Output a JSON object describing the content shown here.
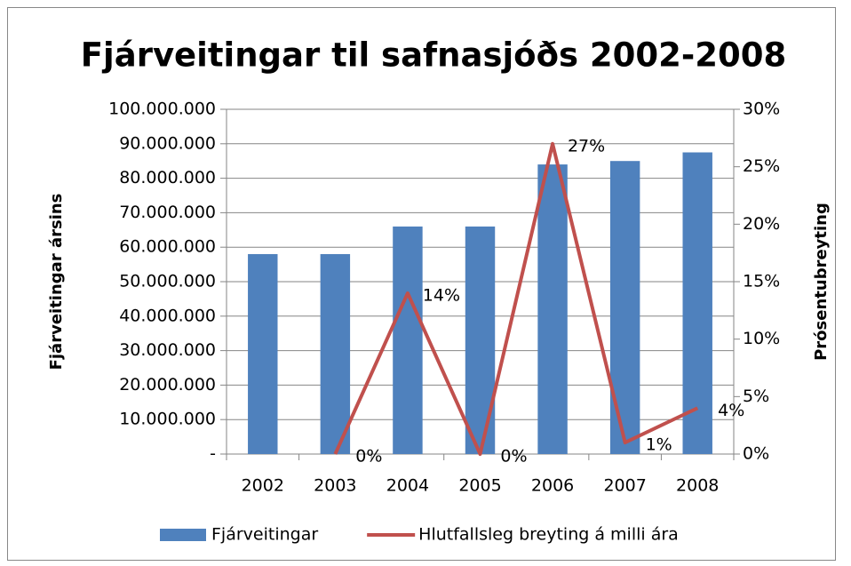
{
  "chart_data": {
    "type": "bar",
    "title": "Fjárveitingar til safnasjóðs 2002-2008",
    "y_label": "Fjárveitingar ársins",
    "y2_label": "Prósentubreyting",
    "categories": [
      "2002",
      "2003",
      "2004",
      "2005",
      "2006",
      "2007",
      "2008"
    ],
    "series": [
      {
        "name": "Fjárveitingar",
        "type": "bar",
        "color": "#4f81bd",
        "values": [
          58000000,
          58000000,
          66000000,
          66000000,
          84000000,
          85000000,
          87500000
        ]
      },
      {
        "name": "Hlutfallsleg breyting á milli ára",
        "type": "line",
        "axis": "y2",
        "color": "#c0504d",
        "values": [
          null,
          0,
          14,
          0,
          27,
          1,
          4
        ],
        "value_labels": [
          null,
          "0%",
          "14%",
          "0%",
          "27%",
          "1%",
          "4%"
        ]
      }
    ],
    "ylim": [
      0,
      100000000
    ],
    "yticks": [
      {
        "value": 0,
        "label": "-"
      },
      {
        "value": 10000000,
        "label": "10.000.000"
      },
      {
        "value": 20000000,
        "label": "20.000.000"
      },
      {
        "value": 30000000,
        "label": "30.000.000"
      },
      {
        "value": 40000000,
        "label": "40.000.000"
      },
      {
        "value": 50000000,
        "label": "50.000.000"
      },
      {
        "value": 60000000,
        "label": "60.000.000"
      },
      {
        "value": 70000000,
        "label": "70.000.000"
      },
      {
        "value": 80000000,
        "label": "80.000.000"
      },
      {
        "value": 90000000,
        "label": "90.000.000"
      },
      {
        "value": 100000000,
        "label": "100.000.000"
      }
    ],
    "y2lim": [
      0,
      30
    ],
    "y2ticks": [
      {
        "value": 0,
        "label": "0%"
      },
      {
        "value": 5,
        "label": "5%"
      },
      {
        "value": 10,
        "label": "10%"
      },
      {
        "value": 15,
        "label": "15%"
      },
      {
        "value": 20,
        "label": "20%"
      },
      {
        "value": 25,
        "label": "25%"
      },
      {
        "value": 30,
        "label": "30%"
      }
    ],
    "grid": true,
    "legend": "bottom"
  }
}
